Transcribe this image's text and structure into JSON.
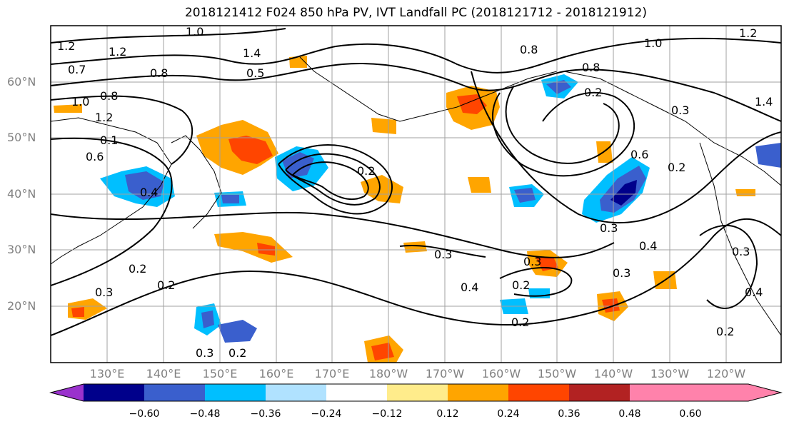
{
  "title": "2018121412 F024 850 hPa PV, IVT Landfall PC (2018121712 - 2018121912)",
  "map": {
    "lat_labels": [
      "60°N",
      "50°N",
      "40°N",
      "30°N",
      "20°N"
    ],
    "lon_labels": [
      "130°E",
      "140°E",
      "150°E",
      "160°E",
      "170°E",
      "180°W",
      "170°W",
      "160°W",
      "150°W",
      "140°W",
      "130°W",
      "120°W"
    ],
    "contour_labels": [
      "1.2",
      "1.2",
      "1.0",
      "1.4",
      "0.8",
      "1.0",
      "0.7",
      "0.8",
      "0.5",
      "0.8",
      "1.0",
      "0.8",
      "0.2",
      "1.2",
      "0.3",
      "1.4",
      "1.2",
      "0.1",
      "0.6",
      "0.6",
      "0.4",
      "0.2",
      "0.3",
      "0.3",
      "0.4",
      "0.3",
      "0.2",
      "0.4",
      "0.2",
      "0.3",
      "0.2",
      "0.2",
      "0.3",
      "0.4",
      "0.3",
      "0.2",
      "0.3",
      "0.2",
      "0.2"
    ],
    "colors": {
      "land_outline": "#000000",
      "grid": "#a0a0a0",
      "contour": "#000000"
    }
  },
  "colorbar": {
    "tick_labels": [
      "−0.60",
      "−0.48",
      "−0.36",
      "−0.24",
      "−0.12",
      "0.12",
      "0.24",
      "0.36",
      "0.48",
      "0.60"
    ],
    "colors": [
      "#9a32cd",
      "#00008b",
      "#3a5fcd",
      "#00bfff",
      "#b0e2ff",
      "#ffffff",
      "#ffec8b",
      "#ffa500",
      "#ff4500",
      "#b22222",
      "#ff82ab"
    ]
  }
}
